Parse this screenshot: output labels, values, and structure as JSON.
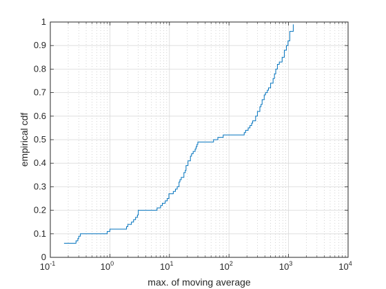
{
  "chart_data": {
    "type": "line",
    "step": true,
    "x_scale": "log",
    "xlabel": "max. of moving average",
    "ylabel": "empirical cdf",
    "xlim": [
      0.1,
      10000
    ],
    "ylim": [
      0,
      1
    ],
    "x_ticks": [
      {
        "base": "10",
        "exp": "-1",
        "value": 0.1
      },
      {
        "base": "10",
        "exp": "0",
        "value": 1
      },
      {
        "base": "10",
        "exp": "1",
        "value": 10
      },
      {
        "base": "10",
        "exp": "2",
        "value": 100
      },
      {
        "base": "10",
        "exp": "3",
        "value": 1000
      },
      {
        "base": "10",
        "exp": "4",
        "value": 10000
      }
    ],
    "y_ticks": [
      "0",
      "0.1",
      "0.2",
      "0.3",
      "0.4",
      "0.5",
      "0.6",
      "0.7",
      "0.8",
      "0.9",
      "1"
    ],
    "grid": true,
    "minor_grid": true,
    "line_color": "#0072bd",
    "series": [
      {
        "x": [
          0.17,
          0.27,
          0.29,
          0.3,
          0.32,
          0.9,
          1.0,
          1.9,
          2.0,
          2.3,
          2.5,
          2.7,
          2.9,
          3.0,
          6.2,
          7.1,
          7.6,
          8.5,
          9.2,
          9.8,
          11.6,
          12.6,
          13.5,
          14.5,
          15.0,
          15.8,
          17.5,
          18.5,
          19.0,
          20.5,
          22.5,
          23.5,
          25.0,
          27.0,
          28.0,
          29.0,
          30.0,
          55.0,
          65.0,
          80.0,
          180.0,
          190.0,
          210.0,
          225.0,
          240.0,
          250.0,
          280.0,
          300.0,
          330.0,
          345.0,
          360.0,
          390.0,
          410.0,
          440.0,
          460.0,
          500.0,
          550.0,
          580.0,
          610.0,
          650.0,
          700.0,
          780.0,
          850.0,
          920.0,
          980.0,
          1050.0,
          1200.0
        ],
        "y": [
          0.06,
          0.07,
          0.08,
          0.09,
          0.1,
          0.11,
          0.12,
          0.13,
          0.14,
          0.15,
          0.16,
          0.17,
          0.18,
          0.2,
          0.21,
          0.22,
          0.23,
          0.24,
          0.25,
          0.27,
          0.28,
          0.29,
          0.3,
          0.32,
          0.33,
          0.34,
          0.36,
          0.37,
          0.39,
          0.41,
          0.43,
          0.44,
          0.45,
          0.46,
          0.47,
          0.48,
          0.49,
          0.5,
          0.51,
          0.52,
          0.53,
          0.54,
          0.55,
          0.56,
          0.57,
          0.58,
          0.6,
          0.62,
          0.64,
          0.65,
          0.67,
          0.69,
          0.7,
          0.71,
          0.72,
          0.74,
          0.76,
          0.78,
          0.8,
          0.82,
          0.83,
          0.85,
          0.88,
          0.9,
          0.92,
          0.96,
          0.99
        ]
      }
    ]
  }
}
